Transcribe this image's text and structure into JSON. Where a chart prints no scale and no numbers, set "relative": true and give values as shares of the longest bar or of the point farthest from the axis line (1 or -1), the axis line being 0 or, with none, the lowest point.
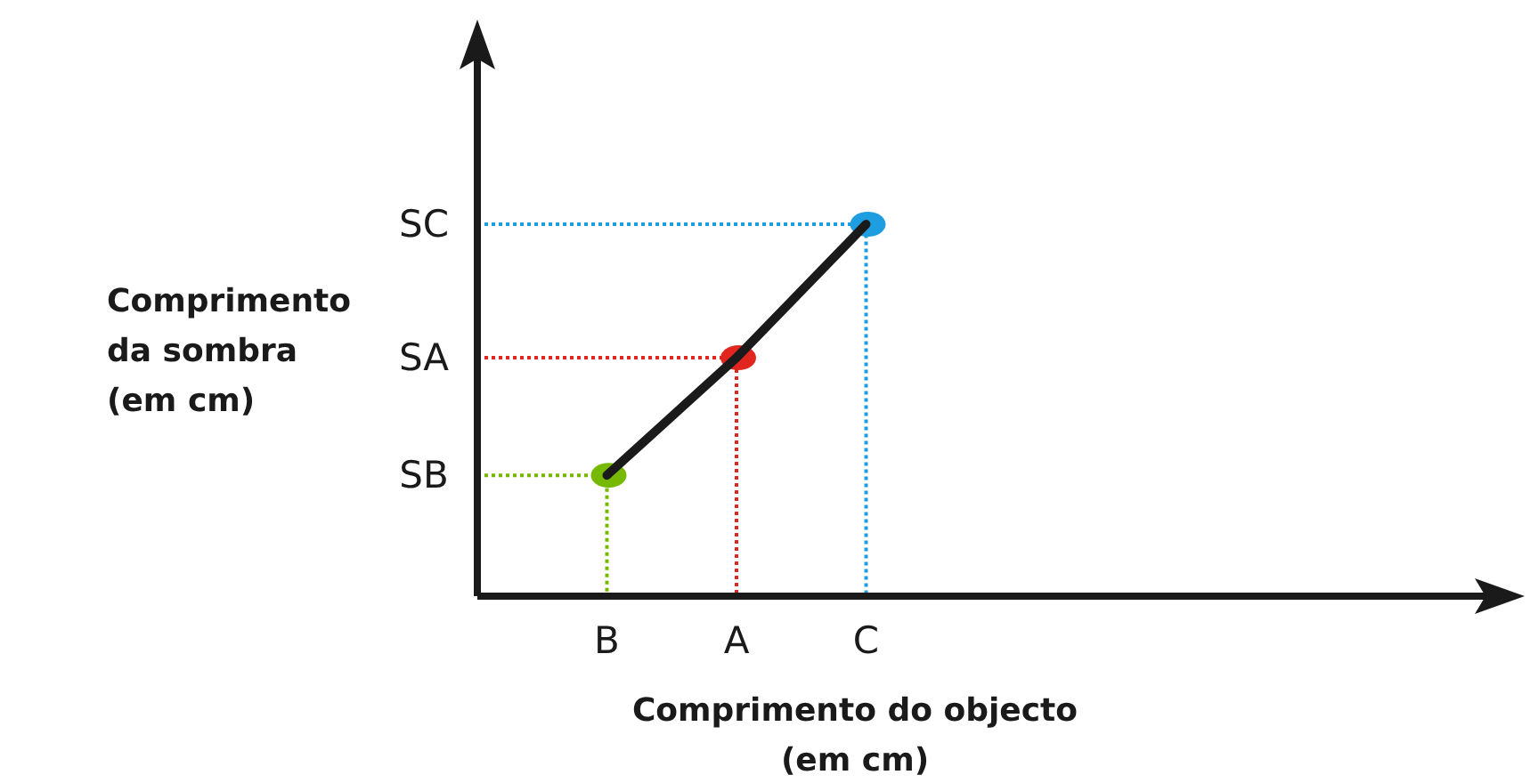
{
  "chart_data": {
    "type": "scatter",
    "relative": true,
    "xlabel": "Comprimento do objecto\n(em cm)",
    "ylabel": "Comprimento\nda sombra\n(em cm)",
    "categories": [
      "B",
      "A",
      "C",
      null,
      null,
      null,
      null
    ],
    "annotations": [
      "SB",
      "SA",
      "SC"
    ],
    "series": [
      {
        "type": "line",
        "color": "#1a1a1a",
        "values": [
          0.325,
          0.641,
          1,
          null,
          null,
          null,
          null
        ]
      },
      {
        "marker": "circle",
        "colors": [
          "#76b900",
          "#e0261e",
          "#1e9ee0",
          null,
          null,
          null,
          null
        ],
        "values": [
          0.325,
          0.641,
          1,
          null,
          null,
          null,
          null
        ]
      }
    ]
  }
}
